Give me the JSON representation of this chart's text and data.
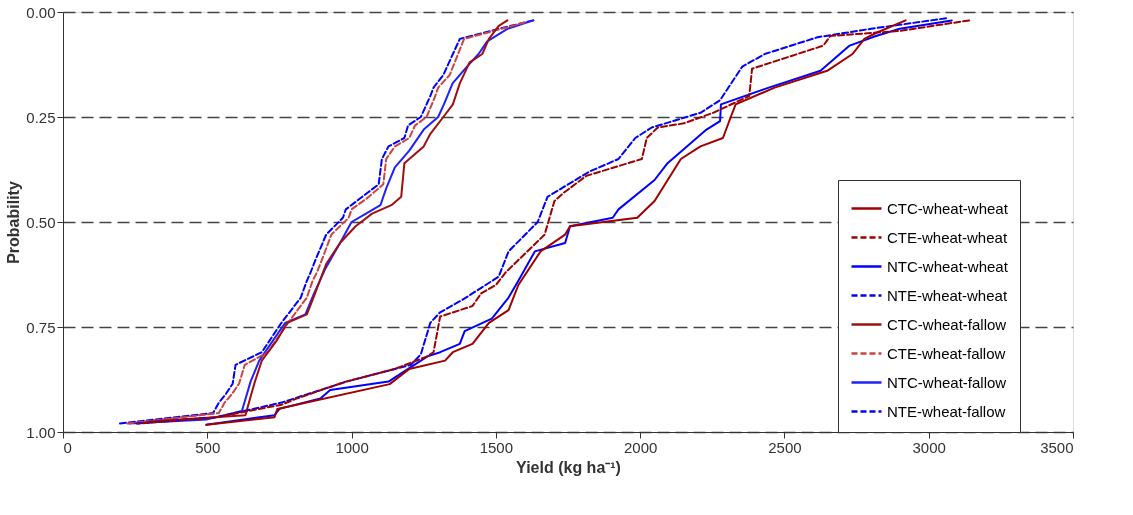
{
  "chart_data": {
    "type": "line",
    "xlabel": "Yield (kg ha⁻¹)",
    "ylabel": "Probability",
    "xlim": [
      0,
      3500
    ],
    "xticks": [
      0,
      500,
      {
        "value": 1000,
        "label": "1000"
      },
      {
        "value": 1500,
        "label": "1500"
      },
      {
        "value": 2000,
        "label": "2000"
      },
      {
        "value": 2500,
        "label": "2500"
      },
      {
        "value": 3000,
        "label": "3000"
      },
      {
        "value": 3500,
        "label": "3500"
      }
    ],
    "ylim": [
      1,
      0
    ],
    "yticks": [
      {
        "value": 0,
        "label": "0.00"
      },
      {
        "value": 0.25,
        "label": "0.25"
      },
      {
        "value": 0.5,
        "label": "0.50"
      },
      {
        "value": 0.75,
        "label": "0.75"
      },
      {
        "value": 1,
        "label": "1.00"
      }
    ],
    "grid": "y",
    "legend": "right",
    "marker": "none",
    "series": [
      {
        "name": "CTC-wheat-wheat",
        "color": "#a00000",
        "line_style": "solid",
        "x": [
          2920,
          2817,
          2777,
          2736,
          2648,
          2466,
          2331,
          2314,
          2287,
          2209,
          2141,
          2050,
          1990,
          1757,
          1740,
          1655,
          1578,
          1544,
          1476,
          1419,
          1351,
          1324,
          1200,
          1132,
          743,
          733,
          497
        ],
        "values": [
          0.02,
          0.05,
          0.064,
          0.1,
          0.14,
          0.18,
          0.22,
          0.25,
          0.3,
          0.32,
          0.35,
          0.45,
          0.49,
          0.51,
          0.53,
          0.57,
          0.65,
          0.71,
          0.74,
          0.79,
          0.81,
          0.83,
          0.85,
          0.886,
          0.945,
          0.965,
          0.983
        ]
      },
      {
        "name": "CTE-wheat-wheat",
        "color": "#a00000",
        "line_style": "dashed",
        "x": [
          3140,
          2900,
          2659,
          2635,
          2388,
          2378,
          2253,
          2152,
          2061,
          2023,
          2006,
          1814,
          1736,
          1703,
          1669,
          1534,
          1500,
          1449,
          1419,
          1375,
          1307,
          1284,
          1263,
          1149,
          980,
          811,
          757,
          530,
          260
        ],
        "values": [
          0.02,
          0.045,
          0.057,
          0.08,
          0.135,
          0.2,
          0.24,
          0.265,
          0.275,
          0.3,
          0.35,
          0.39,
          0.43,
          0.45,
          0.53,
          0.62,
          0.65,
          0.67,
          0.7,
          0.71,
          0.725,
          0.81,
          0.82,
          0.85,
          0.88,
          0.92,
          0.935,
          0.965,
          0.98
        ]
      },
      {
        "name": "NTC-wheat-wheat",
        "color": "#0000ff",
        "line_style": "solid",
        "x": [
          3080,
          2900,
          2817,
          2726,
          2625,
          2446,
          2280,
          2277,
          2230,
          2162,
          2095,
          2050,
          1925,
          1905,
          1757,
          1740,
          1635,
          1578,
          1544,
          1486,
          1392,
          1375,
          1307,
          1263,
          1128,
          926,
          892,
          750,
          733,
          497
        ],
        "values": [
          0.02,
          0.04,
          0.057,
          0.08,
          0.14,
          0.18,
          0.22,
          0.26,
          0.28,
          0.32,
          0.36,
          0.4,
          0.47,
          0.49,
          0.51,
          0.55,
          0.57,
          0.64,
          0.68,
          0.73,
          0.76,
          0.79,
          0.81,
          0.82,
          0.88,
          0.9,
          0.92,
          0.945,
          0.96,
          0.983
        ]
      },
      {
        "name": "NTE-wheat-wheat",
        "color": "#0000ff",
        "line_style": "dashed",
        "x": [
          3060,
          2800,
          2615,
          2432,
          2354,
          2277,
          2209,
          2040,
          1983,
          1925,
          1824,
          1679,
          1645,
          1544,
          1510,
          1385,
          1307,
          1273,
          1240,
          1206,
          983,
          757,
          530,
          250
        ],
        "values": [
          0.015,
          0.04,
          0.06,
          0.1,
          0.13,
          0.21,
          0.24,
          0.275,
          0.3,
          0.35,
          0.38,
          0.44,
          0.5,
          0.57,
          0.63,
          0.685,
          0.715,
          0.74,
          0.815,
          0.84,
          0.88,
          0.93,
          0.965,
          0.98
        ]
      },
      {
        "name": "CTC-wheat-fallow",
        "color": "#a01010",
        "line_style": "solid",
        "x": [
          1540,
          1510,
          1476,
          1453,
          1409,
          1375,
          1351,
          1318,
          1273,
          1250,
          1183,
          1172,
          1138,
          1071,
          1014,
          960,
          912,
          868,
          845,
          777,
          743,
          689,
          665,
          632,
          300
        ],
        "values": [
          0.02,
          0.033,
          0.064,
          0.1,
          0.12,
          0.17,
          0.22,
          0.25,
          0.29,
          0.32,
          0.36,
          0.44,
          0.46,
          0.48,
          0.51,
          0.55,
          0.6,
          0.68,
          0.72,
          0.74,
          0.78,
          0.83,
          0.88,
          0.96,
          0.975
        ]
      },
      {
        "name": "CTE-wheat-fallow",
        "color": "#cc4444",
        "line_style": "dashed",
        "x": [
          1600,
          1520,
          1390,
          1340,
          1300,
          1290,
          1260,
          1220,
          1200,
          1150,
          1120,
          1110,
          1060,
          1000,
          990,
          930,
          900,
          880,
          865,
          845,
          780,
          745,
          710,
          630,
          610,
          585,
          560,
          540,
          220
        ],
        "values": [
          0.025,
          0.04,
          0.064,
          0.15,
          0.18,
          0.2,
          0.25,
          0.27,
          0.3,
          0.32,
          0.35,
          0.41,
          0.44,
          0.47,
          0.49,
          0.53,
          0.585,
          0.62,
          0.64,
          0.68,
          0.74,
          0.775,
          0.81,
          0.84,
          0.885,
          0.91,
          0.93,
          0.955,
          0.98
        ]
      },
      {
        "name": "NTC-wheat-fallow",
        "color": "#2020ff",
        "line_style": "solid",
        "x": [
          1630,
          1540,
          1470,
          1440,
          1400,
          1350,
          1320,
          1300,
          1250,
          1200,
          1150,
          1120,
          1100,
          1050,
          1000,
          960,
          910,
          870,
          840,
          770,
          730,
          680,
          650,
          620,
          500,
          230
        ],
        "values": [
          0.02,
          0.04,
          0.07,
          0.1,
          0.13,
          0.17,
          0.22,
          0.25,
          0.28,
          0.33,
          0.37,
          0.42,
          0.46,
          0.48,
          0.5,
          0.55,
          0.61,
          0.67,
          0.72,
          0.74,
          0.78,
          0.83,
          0.88,
          0.95,
          0.97,
          0.98
        ]
      },
      {
        "name": "NTE-wheat-fallow",
        "color": "#0000ff",
        "line_style": "dashed",
        "x": [
          1630,
          1510,
          1375,
          1318,
          1284,
          1273,
          1240,
          1196,
          1183,
          1128,
          1105,
          1094,
          1037,
          980,
          970,
          912,
          878,
          858,
          845,
          824,
          757,
          723,
          689,
          598,
          588,
          564,
          540,
          520,
          193
        ],
        "values": [
          0.02,
          0.04,
          0.064,
          0.15,
          0.18,
          0.2,
          0.25,
          0.27,
          0.3,
          0.32,
          0.35,
          0.41,
          0.44,
          0.47,
          0.49,
          0.53,
          0.585,
          0.62,
          0.64,
          0.68,
          0.74,
          0.775,
          0.81,
          0.84,
          0.885,
          0.91,
          0.93,
          0.955,
          0.98
        ]
      }
    ]
  }
}
